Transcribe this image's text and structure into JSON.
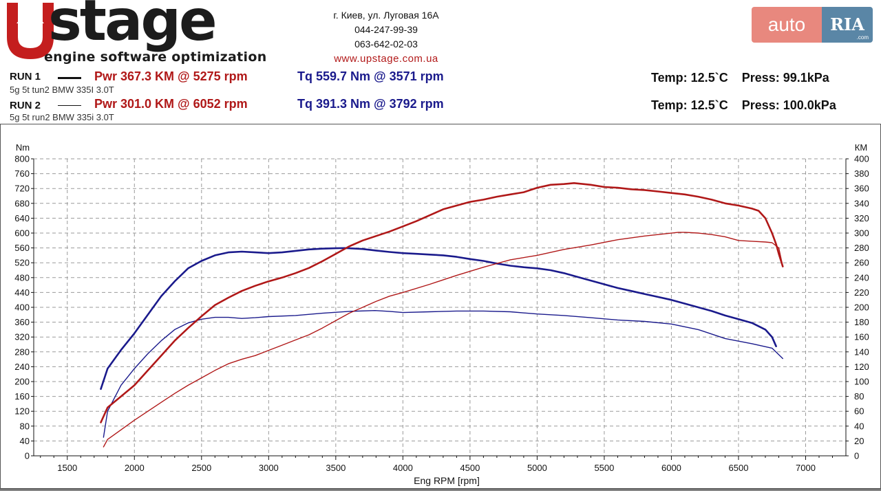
{
  "header": {
    "logo_text": "Upstage",
    "logo_subtitle": "engine software optimization",
    "address": "г. Киев, ул. Луговая 16А",
    "phone1": "044-247-99-39",
    "phone2": "063-642-02-03",
    "website": "www.upstage.com.ua",
    "badge_auto": "auto",
    "badge_ria": "RIA",
    "badge_com": ".com"
  },
  "runs": [
    {
      "label": "RUN 1",
      "description": "5g 5t tun2 BMW 335I 3.0T",
      "power": "Pwr  367.3 KM @ 5275 rpm",
      "torque": "Tq 559.7 Nm @ 3571 rpm",
      "temp": "Temp: 12.5`C",
      "press": "Press: 99.1kPa"
    },
    {
      "label": "RUN 2",
      "description": "5g 5t run2 BMW 335i 3.0T",
      "power": "Pwr  301.0 KM @ 6052 rpm",
      "torque": "Tq 391.3 Nm @ 3792 rpm",
      "temp": "Temp: 12.5`C",
      "press": "Press: 100.0kPa"
    }
  ],
  "colors": {
    "power": "#b01818",
    "torque": "#1a1a8c",
    "grid": "#9a9a9a"
  },
  "chart_data": {
    "type": "line",
    "xlabel": "Eng RPM [rpm]",
    "ylabel_left": "Nm",
    "ylabel_right": "КМ",
    "xlim": [
      1250,
      7300
    ],
    "xticks": [
      1500,
      2000,
      2500,
      3000,
      3500,
      4000,
      4500,
      5000,
      5500,
      6000,
      6500,
      7000
    ],
    "ylim_left": [
      0,
      800
    ],
    "yticks_left": [
      0,
      40,
      80,
      120,
      160,
      200,
      240,
      280,
      320,
      360,
      400,
      440,
      480,
      520,
      560,
      600,
      640,
      680,
      720,
      760,
      800
    ],
    "ylim_right": [
      0,
      400
    ],
    "yticks_right": [
      0,
      20,
      40,
      60,
      80,
      100,
      120,
      140,
      160,
      180,
      200,
      220,
      240,
      260,
      280,
      300,
      320,
      340,
      360,
      380,
      400
    ],
    "grid": true,
    "series": [
      {
        "name": "RUN 1 Tq",
        "axis": "left",
        "color": "#1a1a8c",
        "width": 2.6,
        "x": [
          1750,
          1800,
          1900,
          2000,
          2100,
          2200,
          2300,
          2400,
          2500,
          2600,
          2700,
          2800,
          2900,
          3000,
          3100,
          3200,
          3300,
          3400,
          3500,
          3571,
          3700,
          3800,
          3900,
          4000,
          4100,
          4200,
          4300,
          4400,
          4500,
          4600,
          4700,
          4800,
          4900,
          5000,
          5100,
          5200,
          5300,
          5400,
          5500,
          5600,
          5700,
          5800,
          5900,
          6000,
          6100,
          6200,
          6300,
          6400,
          6500,
          6600,
          6700,
          6750,
          6780
        ],
        "y": [
          180,
          235,
          285,
          330,
          380,
          430,
          470,
          505,
          525,
          540,
          548,
          550,
          548,
          546,
          548,
          552,
          556,
          558,
          559,
          559.7,
          557,
          553,
          549,
          546,
          544,
          542,
          540,
          536,
          530,
          525,
          518,
          512,
          508,
          505,
          500,
          492,
          482,
          472,
          462,
          452,
          444,
          436,
          428,
          420,
          410,
          400,
          390,
          378,
          368,
          358,
          340,
          320,
          295
        ]
      },
      {
        "name": "RUN 2 Tq",
        "axis": "left",
        "color": "#1a1a8c",
        "width": 1.4,
        "x": [
          1770,
          1800,
          1900,
          2000,
          2100,
          2200,
          2300,
          2400,
          2500,
          2600,
          2700,
          2800,
          2900,
          3000,
          3200,
          3400,
          3600,
          3792,
          3900,
          4000,
          4200,
          4400,
          4600,
          4800,
          5000,
          5200,
          5400,
          5600,
          5800,
          6000,
          6200,
          6400,
          6600,
          6750,
          6830
        ],
        "y": [
          50,
          120,
          190,
          235,
          275,
          310,
          340,
          358,
          368,
          373,
          373,
          370,
          372,
          375,
          378,
          384,
          389,
          391.3,
          389,
          386,
          388,
          390,
          390,
          388,
          382,
          378,
          372,
          366,
          362,
          355,
          340,
          316,
          302,
          290,
          262
        ]
      },
      {
        "name": "RUN 1 Pwr",
        "axis": "right",
        "color": "#b01818",
        "width": 2.6,
        "x": [
          1750,
          1800,
          1900,
          2000,
          2100,
          2200,
          2300,
          2400,
          2500,
          2600,
          2700,
          2800,
          2900,
          3000,
          3100,
          3200,
          3300,
          3400,
          3500,
          3600,
          3700,
          3800,
          3900,
          4000,
          4100,
          4200,
          4300,
          4400,
          4500,
          4600,
          4700,
          4800,
          4900,
          5000,
          5100,
          5200,
          5275,
          5400,
          5500,
          5600,
          5700,
          5800,
          5900,
          6000,
          6100,
          6200,
          6300,
          6400,
          6500,
          6600,
          6650,
          6700,
          6750,
          6780,
          6800,
          6830
        ],
        "y": [
          45,
          65,
          80,
          95,
          115,
          135,
          155,
          172,
          188,
          203,
          213,
          222,
          229,
          235,
          240,
          246,
          253,
          262,
          272,
          282,
          290,
          296,
          302,
          309,
          316,
          324,
          332,
          337,
          342,
          345,
          349,
          352,
          355,
          361,
          365,
          366,
          367.3,
          365,
          362,
          361,
          359,
          358,
          356,
          354,
          352,
          349,
          345,
          340,
          337,
          333,
          330,
          320,
          300,
          285,
          272,
          255
        ]
      },
      {
        "name": "RUN 2 Pwr",
        "axis": "right",
        "color": "#b01818",
        "width": 1.4,
        "x": [
          1770,
          1800,
          1900,
          2000,
          2100,
          2200,
          2300,
          2400,
          2500,
          2600,
          2700,
          2800,
          2900,
          3000,
          3100,
          3200,
          3300,
          3400,
          3500,
          3600,
          3700,
          3800,
          3900,
          4000,
          4200,
          4400,
          4600,
          4800,
          5000,
          5200,
          5400,
          5600,
          5800,
          5900,
          6052,
          6100,
          6200,
          6300,
          6400,
          6500,
          6600,
          6700,
          6750,
          6800,
          6830
        ],
        "y": [
          12,
          22,
          35,
          48,
          60,
          72,
          84,
          95,
          105,
          115,
          124,
          130,
          135,
          142,
          149,
          156,
          163,
          172,
          182,
          192,
          200,
          208,
          215,
          220,
          231,
          243,
          254,
          264,
          270,
          278,
          284,
          291,
          296,
          298,
          301,
          301,
          300,
          298,
          295,
          290,
          289,
          288,
          287,
          280,
          255
        ]
      }
    ]
  }
}
